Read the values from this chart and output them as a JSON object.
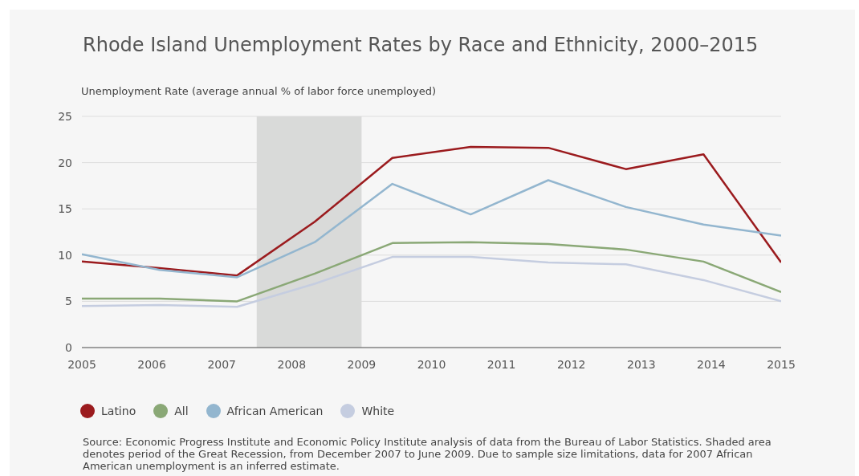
{
  "chart_data": {
    "type": "line",
    "title": "Rhode Island Unemployment Rates by Race and Ethnicity, 2000–2015",
    "ylabel": "Unemployment Rate (average annual % of labor force unemployed)",
    "x": [
      2005,
      2006.11,
      2007.22,
      2008.33,
      2009.44,
      2010.56,
      2011.67,
      2012.78,
      2013.89,
      2015
    ],
    "series": [
      {
        "name": "Latino",
        "color": "#9b1b1e",
        "values": [
          9.3,
          8.6,
          7.8,
          13.6,
          20.5,
          21.7,
          21.6,
          19.3,
          20.9,
          9.2
        ]
      },
      {
        "name": "All",
        "color": "#8aa876",
        "values": [
          5.3,
          5.3,
          5.0,
          8.0,
          11.3,
          11.4,
          11.2,
          10.6,
          9.3,
          6.0
        ]
      },
      {
        "name": "African American",
        "color": "#93b6cf",
        "values": [
          10.1,
          8.4,
          7.6,
          11.4,
          17.7,
          14.4,
          18.1,
          15.2,
          13.3,
          12.1
        ]
      },
      {
        "name": "White",
        "color": "#c5cde0",
        "values": [
          4.5,
          4.6,
          4.4,
          6.9,
          9.8,
          9.8,
          9.2,
          9.0,
          7.3,
          5.0
        ]
      }
    ],
    "xlim": [
      2005,
      2015
    ],
    "xticks": [
      2005,
      2006,
      2007,
      2008,
      2009,
      2010,
      2011,
      2012,
      2013,
      2014,
      2015
    ],
    "ylim": [
      0,
      25
    ],
    "yticks": [
      0,
      5,
      10,
      15,
      20,
      25
    ],
    "bands": [
      {
        "axis": "x",
        "from": 2007.5,
        "to": 2009,
        "color": "#d9dad9"
      }
    ],
    "grid": "y",
    "legend": "bottom",
    "annotations": [
      "Source: Economic Progress Institute and Economic Policy Institute analysis of data from the Bureau of Labor Statistics. Shaded area denotes period of the Great Recession, from December 2007 to June 2009. Due to sample size limitations, data for 2007 African American unemployment is an inferred estimate."
    ]
  }
}
